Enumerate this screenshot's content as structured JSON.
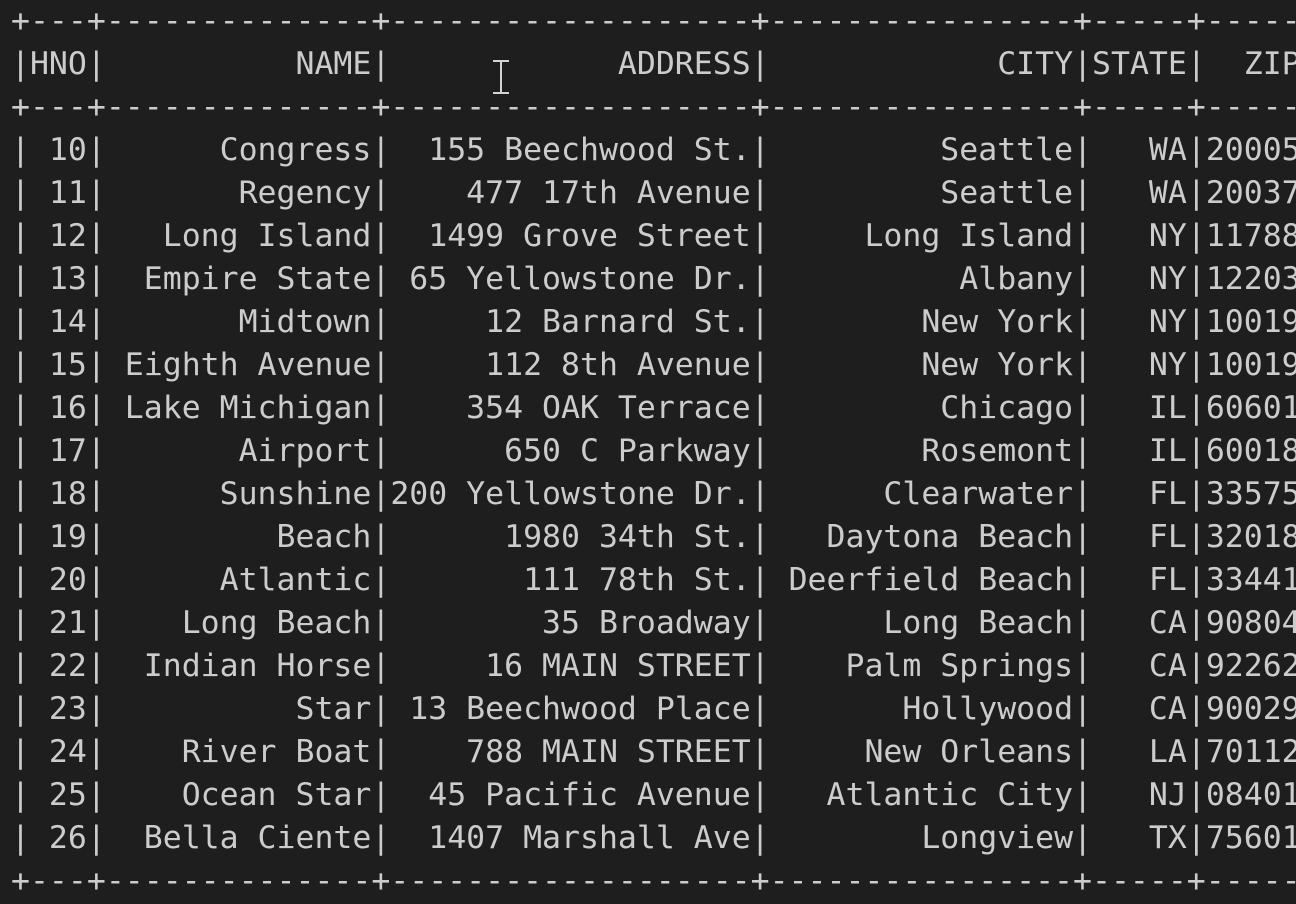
{
  "table": {
    "columns": [
      {
        "key": "hno",
        "label": "HNO",
        "width": 3
      },
      {
        "key": "name",
        "label": "NAME",
        "width": 14
      },
      {
        "key": "address",
        "label": "ADDRESS",
        "width": 19
      },
      {
        "key": "city",
        "label": "CITY",
        "width": 16
      },
      {
        "key": "state",
        "label": "STATE",
        "width": 5
      },
      {
        "key": "zip",
        "label": "ZIP",
        "width": 5
      }
    ],
    "rows": [
      [
        "10",
        "Congress",
        "155 Beechwood St.",
        "Seattle",
        "WA",
        "20005"
      ],
      [
        "11",
        "Regency",
        "477 17th Avenue",
        "Seattle",
        "WA",
        "20037"
      ],
      [
        "12",
        "Long Island",
        "1499 Grove Street",
        "Long Island",
        "NY",
        "11788"
      ],
      [
        "13",
        "Empire State",
        "65 Yellowstone Dr.",
        "Albany",
        "NY",
        "12203"
      ],
      [
        "14",
        "Midtown",
        "12 Barnard St.",
        "New York",
        "NY",
        "10019"
      ],
      [
        "15",
        "Eighth Avenue",
        "112 8th Avenue",
        "New York",
        "NY",
        "10019"
      ],
      [
        "16",
        "Lake Michigan",
        "354 OAK Terrace",
        "Chicago",
        "IL",
        "60601"
      ],
      [
        "17",
        "Airport",
        "650 C Parkway",
        "Rosemont",
        "IL",
        "60018"
      ],
      [
        "18",
        "Sunshine",
        "200 Yellowstone Dr.",
        "Clearwater",
        "FL",
        "33575"
      ],
      [
        "19",
        "Beach",
        "1980 34th St.",
        "Daytona Beach",
        "FL",
        "32018"
      ],
      [
        "20",
        "Atlantic",
        "111 78th St.",
        "Deerfield Beach",
        "FL",
        "33441"
      ],
      [
        "21",
        "Long Beach",
        "35 Broadway",
        "Long Beach",
        "CA",
        "90804"
      ],
      [
        "22",
        "Indian Horse",
        "16 MAIN STREET",
        "Palm Springs",
        "CA",
        "92262"
      ],
      [
        "23",
        "Star",
        "13 Beechwood Place",
        "Hollywood",
        "CA",
        "90029"
      ],
      [
        "24",
        "River Boat",
        "788 MAIN STREET",
        "New Orleans",
        "LA",
        "70112"
      ],
      [
        "25",
        "Ocean Star",
        "45 Pacific Avenue",
        "Atlantic City",
        "NJ",
        "08401"
      ],
      [
        "26",
        "Bella Ciente",
        "1407 Marshall Ave",
        "Longview",
        "TX",
        "75601"
      ]
    ]
  },
  "colors": {
    "background": "#1e1e1e",
    "text": "#cccccc"
  },
  "cursor": {
    "icon": "text-cursor-icon"
  }
}
